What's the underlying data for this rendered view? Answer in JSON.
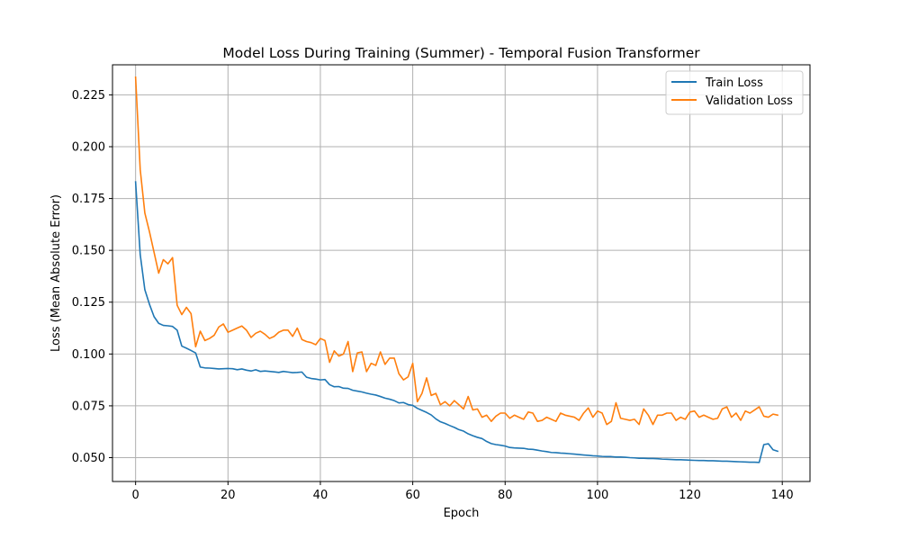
{
  "chart_data": {
    "type": "line",
    "title": "Model Loss During Training (Summer) - Temporal Fusion Transformer",
    "xlabel": "Epoch",
    "ylabel": "Loss (Mean Absolute Error)",
    "xlim": [
      -5,
      146
    ],
    "ylim": [
      0.0385,
      0.2395
    ],
    "xticks": [
      0,
      20,
      40,
      60,
      80,
      100,
      120,
      140
    ],
    "xtick_labels": [
      "0",
      "20",
      "40",
      "60",
      "80",
      "100",
      "120",
      "140"
    ],
    "yticks": [
      0.05,
      0.075,
      0.1,
      0.125,
      0.15,
      0.175,
      0.2,
      0.225
    ],
    "ytick_labels": [
      "0.050",
      "0.075",
      "0.100",
      "0.125",
      "0.150",
      "0.175",
      "0.200",
      "0.225"
    ],
    "grid": true,
    "legend_position": "top-right",
    "series": [
      {
        "name": "Train Loss",
        "color": "#1f77b4",
        "values": [
          0.183,
          0.148,
          0.131,
          0.124,
          0.118,
          0.1148,
          0.1138,
          0.1136,
          0.1133,
          0.1115,
          0.1038,
          0.1028,
          0.1017,
          0.1005,
          0.0937,
          0.0933,
          0.0932,
          0.093,
          0.0928,
          0.0929,
          0.093,
          0.0929,
          0.0924,
          0.0928,
          0.0922,
          0.0918,
          0.0924,
          0.0916,
          0.0918,
          0.0916,
          0.0914,
          0.0911,
          0.0916,
          0.0913,
          0.091,
          0.0911,
          0.0913,
          0.0888,
          0.0882,
          0.0879,
          0.0875,
          0.0877,
          0.0852,
          0.0842,
          0.0843,
          0.0835,
          0.0834,
          0.0825,
          0.0821,
          0.0817,
          0.0811,
          0.0806,
          0.0802,
          0.0795,
          0.0787,
          0.0782,
          0.0775,
          0.0764,
          0.0766,
          0.0756,
          0.0752,
          0.0738,
          0.0728,
          0.0718,
          0.0706,
          0.0687,
          0.0673,
          0.0665,
          0.0655,
          0.0646,
          0.0635,
          0.0628,
          0.0615,
          0.0606,
          0.0598,
          0.0592,
          0.0578,
          0.0568,
          0.0563,
          0.056,
          0.0556,
          0.0549,
          0.0547,
          0.0546,
          0.0545,
          0.0541,
          0.054,
          0.0536,
          0.0532,
          0.0529,
          0.0525,
          0.0524,
          0.0522,
          0.0521,
          0.0519,
          0.0517,
          0.0515,
          0.0513,
          0.0511,
          0.0509,
          0.0508,
          0.0506,
          0.0505,
          0.0505,
          0.0503,
          0.0503,
          0.0502,
          0.05,
          0.0499,
          0.0497,
          0.0497,
          0.0496,
          0.0496,
          0.0495,
          0.0493,
          0.0492,
          0.0491,
          0.049,
          0.049,
          0.0489,
          0.0488,
          0.0487,
          0.0486,
          0.0486,
          0.0485,
          0.0485,
          0.0484,
          0.0483,
          0.0483,
          0.0482,
          0.0481,
          0.048,
          0.0479,
          0.0478,
          0.0478,
          0.0477,
          0.0563,
          0.0567,
          0.0538,
          0.0531
        ]
      },
      {
        "name": "Validation Loss",
        "color": "#ff7f0e",
        "values": [
          0.2335,
          0.189,
          0.168,
          0.159,
          0.149,
          0.139,
          0.1455,
          0.1435,
          0.1465,
          0.1235,
          0.119,
          0.1225,
          0.1195,
          0.1035,
          0.111,
          0.1065,
          0.1075,
          0.109,
          0.113,
          0.1145,
          0.1105,
          0.1115,
          0.1125,
          0.1135,
          0.1115,
          0.108,
          0.11,
          0.111,
          0.1095,
          0.1075,
          0.1085,
          0.1105,
          0.1115,
          0.1115,
          0.1085,
          0.1125,
          0.107,
          0.106,
          0.1055,
          0.1045,
          0.1075,
          0.1065,
          0.096,
          0.1015,
          0.099,
          0.1,
          0.106,
          0.0915,
          0.1005,
          0.101,
          0.0915,
          0.0955,
          0.0945,
          0.101,
          0.095,
          0.098,
          0.098,
          0.0905,
          0.0875,
          0.089,
          0.0955,
          0.077,
          0.081,
          0.0885,
          0.08,
          0.081,
          0.0755,
          0.077,
          0.075,
          0.0775,
          0.0755,
          0.0735,
          0.0795,
          0.073,
          0.0735,
          0.0695,
          0.0705,
          0.0675,
          0.07,
          0.0715,
          0.0715,
          0.069,
          0.0705,
          0.0695,
          0.0685,
          0.072,
          0.0715,
          0.0675,
          0.068,
          0.0695,
          0.0685,
          0.0675,
          0.0715,
          0.0705,
          0.07,
          0.0695,
          0.068,
          0.0715,
          0.074,
          0.0695,
          0.0725,
          0.0715,
          0.066,
          0.0675,
          0.0765,
          0.069,
          0.0685,
          0.068,
          0.0685,
          0.066,
          0.0735,
          0.0705,
          0.066,
          0.0705,
          0.0705,
          0.0715,
          0.0715,
          0.068,
          0.0695,
          0.0685,
          0.072,
          0.0725,
          0.0695,
          0.0705,
          0.0695,
          0.0685,
          0.069,
          0.0735,
          0.0745,
          0.0695,
          0.0715,
          0.068,
          0.0725,
          0.0715,
          0.073,
          0.0745,
          0.07,
          0.0695,
          0.071,
          0.0705
        ]
      }
    ]
  }
}
